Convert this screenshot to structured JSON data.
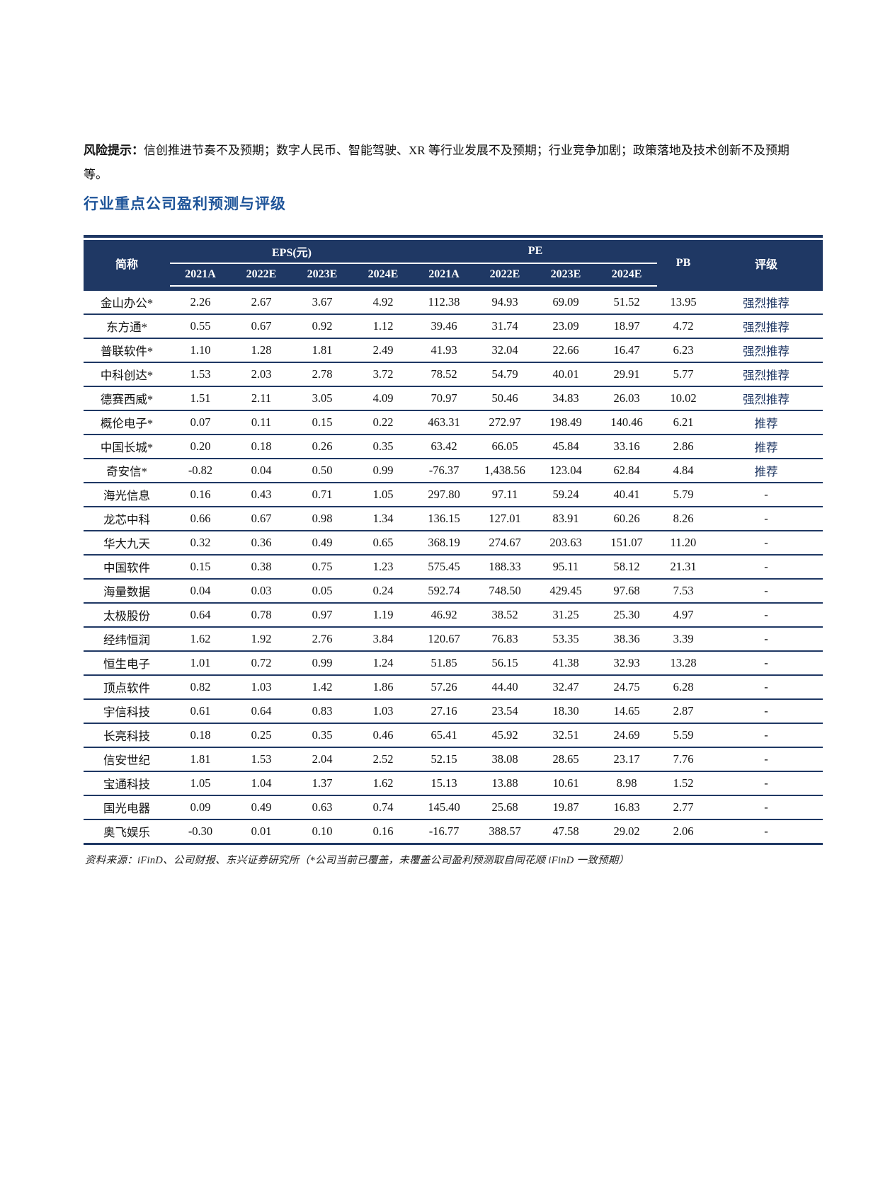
{
  "page": {
    "risk_label": "风险提示：",
    "risk_text": "信创推进节奏不及预期；数字人民币、智能驾驶、XR 等行业发展不及预期；行业竞争加剧；政策落地及技术创新不及预期等。",
    "section_title": "行业重点公司盈利预测与评级",
    "source_note": "资料来源：iFinD、公司财报、东兴证券研究所（*公司当前已覆盖，未覆盖公司盈利预测取自同花顺 iFinD 一致预期）"
  },
  "colors": {
    "header_bg": "#1F3864",
    "separator": "#1F3864",
    "title_blue": "#1E5499",
    "rating_text": "#203864"
  },
  "table": {
    "col_company": "简称",
    "group_eps": "EPS(元)",
    "group_pe": "PE",
    "col_pb": "PB",
    "col_rating": "评级",
    "year_headers": [
      "2021A",
      "2022E",
      "2023E",
      "2024E",
      "2021A",
      "2022E",
      "2023E",
      "2024E"
    ],
    "rows": [
      {
        "name": "金山办公*",
        "eps": [
          "2.26",
          "2.67",
          "3.67",
          "4.92"
        ],
        "pe": [
          "112.38",
          "94.93",
          "69.09",
          "51.52"
        ],
        "pb": "13.95",
        "rating": "强烈推荐"
      },
      {
        "name": "东方通*",
        "eps": [
          "0.55",
          "0.67",
          "0.92",
          "1.12"
        ],
        "pe": [
          "39.46",
          "31.74",
          "23.09",
          "18.97"
        ],
        "pb": "4.72",
        "rating": "强烈推荐"
      },
      {
        "name": "普联软件*",
        "eps": [
          "1.10",
          "1.28",
          "1.81",
          "2.49"
        ],
        "pe": [
          "41.93",
          "32.04",
          "22.66",
          "16.47"
        ],
        "pb": "6.23",
        "rating": "强烈推荐"
      },
      {
        "name": "中科创达*",
        "eps": [
          "1.53",
          "2.03",
          "2.78",
          "3.72"
        ],
        "pe": [
          "78.52",
          "54.79",
          "40.01",
          "29.91"
        ],
        "pb": "5.77",
        "rating": "强烈推荐"
      },
      {
        "name": "德赛西威*",
        "eps": [
          "1.51",
          "2.11",
          "3.05",
          "4.09"
        ],
        "pe": [
          "70.97",
          "50.46",
          "34.83",
          "26.03"
        ],
        "pb": "10.02",
        "rating": "强烈推荐"
      },
      {
        "name": "概伦电子*",
        "eps": [
          "0.07",
          "0.11",
          "0.15",
          "0.22"
        ],
        "pe": [
          "463.31",
          "272.97",
          "198.49",
          "140.46"
        ],
        "pb": "6.21",
        "rating": "推荐"
      },
      {
        "name": "中国长城*",
        "eps": [
          "0.20",
          "0.18",
          "0.26",
          "0.35"
        ],
        "pe": [
          "63.42",
          "66.05",
          "45.84",
          "33.16"
        ],
        "pb": "2.86",
        "rating": "推荐"
      },
      {
        "name": "奇安信*",
        "eps": [
          "-0.82",
          "0.04",
          "0.50",
          "0.99"
        ],
        "pe": [
          "-76.37",
          "1,438.56",
          "123.04",
          "62.84"
        ],
        "pb": "4.84",
        "rating": "推荐"
      },
      {
        "name": "海光信息",
        "eps": [
          "0.16",
          "0.43",
          "0.71",
          "1.05"
        ],
        "pe": [
          "297.80",
          "97.11",
          "59.24",
          "40.41"
        ],
        "pb": "5.79",
        "rating": "-"
      },
      {
        "name": "龙芯中科",
        "eps": [
          "0.66",
          "0.67",
          "0.98",
          "1.34"
        ],
        "pe": [
          "136.15",
          "127.01",
          "83.91",
          "60.26"
        ],
        "pb": "8.26",
        "rating": "-"
      },
      {
        "name": "华大九天",
        "eps": [
          "0.32",
          "0.36",
          "0.49",
          "0.65"
        ],
        "pe": [
          "368.19",
          "274.67",
          "203.63",
          "151.07"
        ],
        "pb": "11.20",
        "rating": "-"
      },
      {
        "name": "中国软件",
        "eps": [
          "0.15",
          "0.38",
          "0.75",
          "1.23"
        ],
        "pe": [
          "575.45",
          "188.33",
          "95.11",
          "58.12"
        ],
        "pb": "21.31",
        "rating": "-"
      },
      {
        "name": "海量数据",
        "eps": [
          "0.04",
          "0.03",
          "0.05",
          "0.24"
        ],
        "pe": [
          "592.74",
          "748.50",
          "429.45",
          "97.68"
        ],
        "pb": "7.53",
        "rating": "-"
      },
      {
        "name": "太极股份",
        "eps": [
          "0.64",
          "0.78",
          "0.97",
          "1.19"
        ],
        "pe": [
          "46.92",
          "38.52",
          "31.25",
          "25.30"
        ],
        "pb": "4.97",
        "rating": "-"
      },
      {
        "name": "经纬恒润",
        "eps": [
          "1.62",
          "1.92",
          "2.76",
          "3.84"
        ],
        "pe": [
          "120.67",
          "76.83",
          "53.35",
          "38.36"
        ],
        "pb": "3.39",
        "rating": "-"
      },
      {
        "name": "恒生电子",
        "eps": [
          "1.01",
          "0.72",
          "0.99",
          "1.24"
        ],
        "pe": [
          "51.85",
          "56.15",
          "41.38",
          "32.93"
        ],
        "pb": "13.28",
        "rating": "-"
      },
      {
        "name": "顶点软件",
        "eps": [
          "0.82",
          "1.03",
          "1.42",
          "1.86"
        ],
        "pe": [
          "57.26",
          "44.40",
          "32.47",
          "24.75"
        ],
        "pb": "6.28",
        "rating": "-"
      },
      {
        "name": "宇信科技",
        "eps": [
          "0.61",
          "0.64",
          "0.83",
          "1.03"
        ],
        "pe": [
          "27.16",
          "23.54",
          "18.30",
          "14.65"
        ],
        "pb": "2.87",
        "rating": "-"
      },
      {
        "name": "长亮科技",
        "eps": [
          "0.18",
          "0.25",
          "0.35",
          "0.46"
        ],
        "pe": [
          "65.41",
          "45.92",
          "32.51",
          "24.69"
        ],
        "pb": "5.59",
        "rating": "-"
      },
      {
        "name": "信安世纪",
        "eps": [
          "1.81",
          "1.53",
          "2.04",
          "2.52"
        ],
        "pe": [
          "52.15",
          "38.08",
          "28.65",
          "23.17"
        ],
        "pb": "7.76",
        "rating": "-"
      },
      {
        "name": "宝通科技",
        "eps": [
          "1.05",
          "1.04",
          "1.37",
          "1.62"
        ],
        "pe": [
          "15.13",
          "13.88",
          "10.61",
          "8.98"
        ],
        "pb": "1.52",
        "rating": "-"
      },
      {
        "name": "国光电器",
        "eps": [
          "0.09",
          "0.49",
          "0.63",
          "0.74"
        ],
        "pe": [
          "145.40",
          "25.68",
          "19.87",
          "16.83"
        ],
        "pb": "2.77",
        "rating": "-"
      },
      {
        "name": "奥飞娱乐",
        "eps": [
          "-0.30",
          "0.01",
          "0.10",
          "0.16"
        ],
        "pe": [
          "-16.77",
          "388.57",
          "47.58",
          "29.02"
        ],
        "pb": "2.06",
        "rating": "-"
      }
    ]
  }
}
